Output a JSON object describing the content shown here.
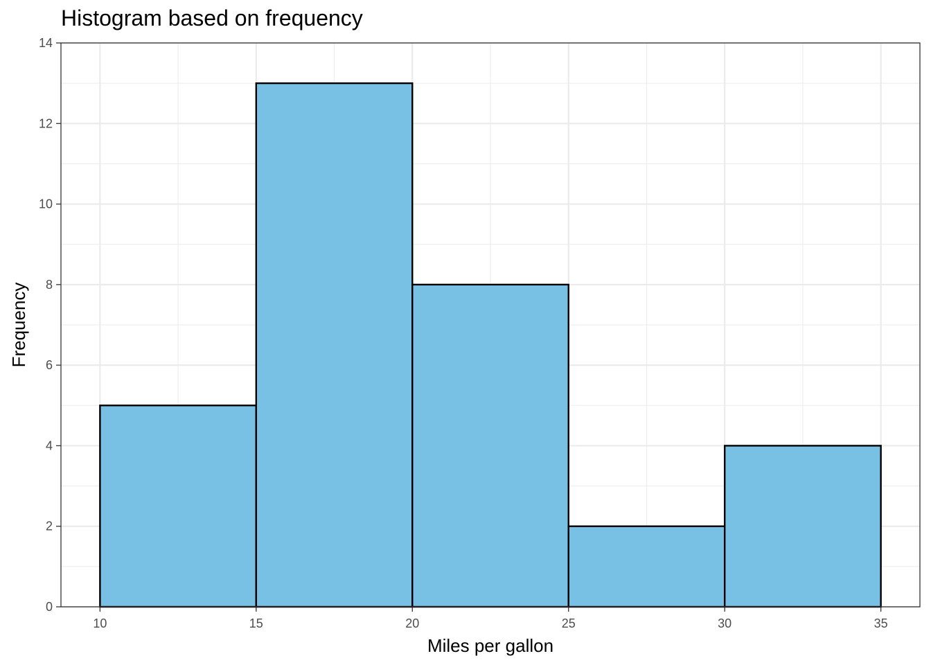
{
  "chart_data": {
    "type": "bar",
    "title": "Histogram based on frequency",
    "xlabel": "Miles per gallon",
    "ylabel": "Frequency",
    "bins": [
      {
        "start": 10,
        "end": 15,
        "count": 5
      },
      {
        "start": 15,
        "end": 20,
        "count": 13
      },
      {
        "start": 20,
        "end": 25,
        "count": 8
      },
      {
        "start": 25,
        "end": 30,
        "count": 2
      },
      {
        "start": 30,
        "end": 35,
        "count": 4
      }
    ],
    "xlim": [
      8.75,
      36.25
    ],
    "ylim": [
      0,
      14
    ],
    "x_ticks": [
      10,
      15,
      20,
      25,
      30,
      35
    ],
    "y_ticks": [
      0,
      2,
      4,
      6,
      8,
      10,
      12,
      14
    ],
    "bar_fill": "#79c1e4",
    "bar_stroke": "#000000",
    "grid": true,
    "grid_color": "#ebebeb",
    "panel_border_color": "#333333"
  }
}
